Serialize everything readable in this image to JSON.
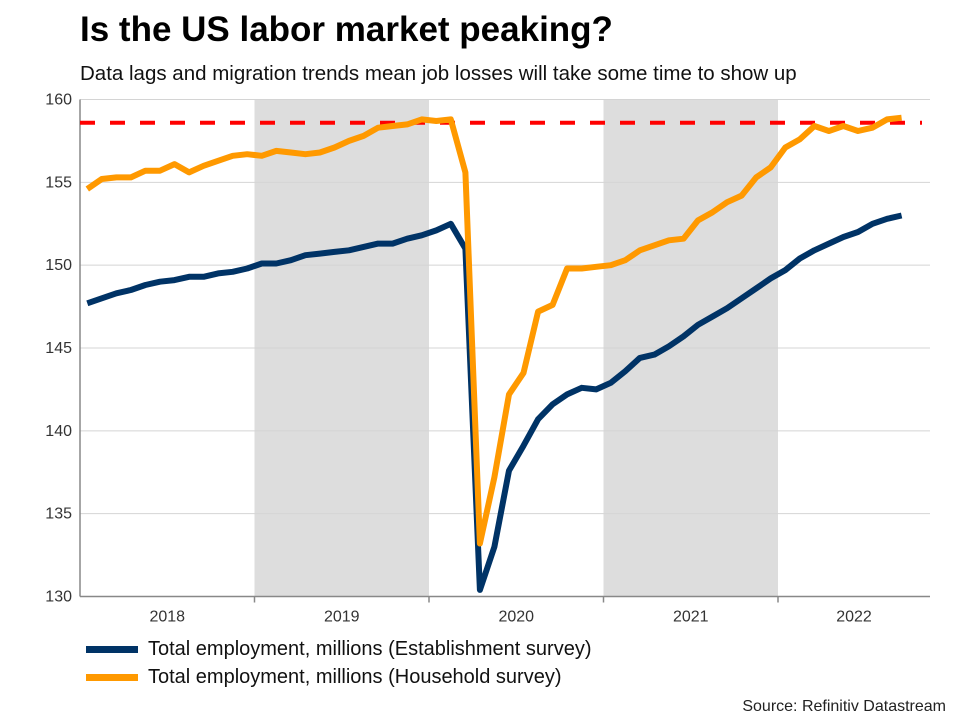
{
  "title": "Is the US labor market peaking?",
  "subtitle": "Data lags and migration trends mean job losses will take some time to show up",
  "source": "Source: Refinitiv Datastream",
  "chart_data": {
    "type": "line",
    "title": "Is the US labor market peaking?",
    "subtitle": "Data lags and migration trends mean job losses will take some time to show up",
    "x_start": "2018-01",
    "x_end": "2022-09",
    "frequency": "monthly",
    "year_labels": [
      "2018",
      "2019",
      "2020",
      "2021",
      "2022"
    ],
    "shaded_years": [
      "2019",
      "2021"
    ],
    "ylim": [
      130,
      160
    ],
    "yticks": [
      130,
      135,
      140,
      145,
      150,
      155,
      160
    ],
    "grid": true,
    "legend": "bottom",
    "reference_line": {
      "value": 158.6,
      "color": "#ff0000",
      "style": "dashed"
    },
    "series": [
      {
        "name": "Total employment, millions (Establishment survey)",
        "color": "#003366",
        "values": [
          147.7,
          148.0,
          148.3,
          148.5,
          148.8,
          149.0,
          149.1,
          149.3,
          149.3,
          149.5,
          149.6,
          149.8,
          150.1,
          150.1,
          150.3,
          150.6,
          150.7,
          150.8,
          150.9,
          151.1,
          151.3,
          151.3,
          151.6,
          151.8,
          152.1,
          152.5,
          151.0,
          130.4,
          133.0,
          137.6,
          139.1,
          140.7,
          141.6,
          142.2,
          142.6,
          142.5,
          142.9,
          143.6,
          144.4,
          144.6,
          145.1,
          145.7,
          146.4,
          146.9,
          147.4,
          148.0,
          148.6,
          149.2,
          149.7,
          150.4,
          150.9,
          151.3,
          151.7,
          152.0,
          152.5,
          152.8,
          153.0
        ]
      },
      {
        "name": "Total employment, millions (Household survey)",
        "color": "#ff9900",
        "values": [
          154.6,
          155.2,
          155.3,
          155.3,
          155.7,
          155.7,
          156.1,
          155.6,
          156.0,
          156.3,
          156.6,
          156.7,
          156.6,
          156.9,
          156.8,
          156.7,
          156.8,
          157.1,
          157.5,
          157.8,
          158.3,
          158.4,
          158.5,
          158.8,
          158.7,
          158.8,
          155.6,
          133.2,
          137.2,
          142.2,
          143.5,
          147.2,
          147.6,
          149.8,
          149.8,
          149.9,
          150.0,
          150.3,
          150.9,
          151.2,
          151.5,
          151.6,
          152.7,
          153.2,
          153.8,
          154.2,
          155.3,
          155.9,
          157.1,
          157.6,
          158.4,
          158.1,
          158.4,
          158.1,
          158.3,
          158.8,
          158.9
        ]
      }
    ]
  }
}
